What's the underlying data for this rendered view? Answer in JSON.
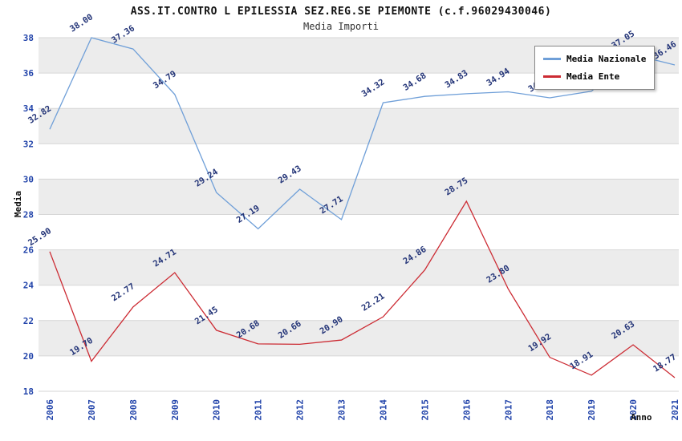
{
  "chart": {
    "title": "ASS.IT.CONTRO L EPILESSIA SEZ.REG.SE PIEMONTE (c.f.96029430046)",
    "subtitle": "Media Importi",
    "ylabel": "Media",
    "xlabel": "Anno"
  },
  "chart_data": {
    "type": "line",
    "title": "ASS.IT.CONTRO L EPILESSIA SEZ.REG.SE PIEMONTE (c.f.96029430046)",
    "subtitle": "Media Importi",
    "xlabel": "Anno",
    "ylabel": "Media",
    "x": [
      2006,
      2007,
      2008,
      2009,
      2010,
      2011,
      2012,
      2013,
      2014,
      2015,
      2016,
      2017,
      2018,
      2019,
      2020,
      2021
    ],
    "series": [
      {
        "name": "Media Nazionale",
        "color": "#6f9fd8",
        "values": [
          32.82,
          38.0,
          37.36,
          34.79,
          29.24,
          27.19,
          29.43,
          27.71,
          34.32,
          34.68,
          34.83,
          34.94,
          34.6,
          34.97,
          37.05,
          36.46
        ]
      },
      {
        "name": "Media Ente",
        "color": "#cc2b33",
        "values": [
          25.9,
          19.7,
          22.77,
          24.71,
          21.45,
          20.68,
          20.66,
          20.9,
          22.21,
          24.86,
          28.75,
          23.8,
          19.92,
          18.91,
          20.63,
          18.77
        ]
      }
    ],
    "ylim": [
      18,
      38
    ],
    "ytick_step": 2,
    "grid": true,
    "legend_position": "top-right",
    "colors": {
      "band_gray": "#ececec",
      "band_white": "#ffffff",
      "grid": "#d6d6d6",
      "tick_label": "#2244aa",
      "point_label": "#223377"
    }
  }
}
